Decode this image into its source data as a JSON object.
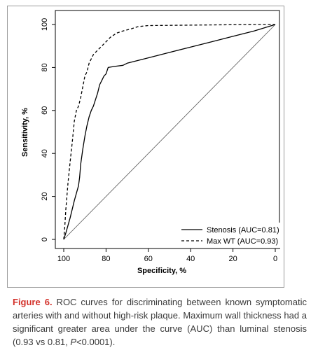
{
  "chart_data": {
    "type": "line",
    "xlabel": "Specificity, %",
    "ylabel": "Sensitivity, %",
    "xlim": [
      100,
      0
    ],
    "ylim": [
      0,
      100
    ],
    "xticks": [
      "100",
      "80",
      "60",
      "40",
      "20",
      "0"
    ],
    "yticks": [
      "0",
      "20",
      "40",
      "60",
      "80",
      "100"
    ],
    "grid": false,
    "legend_position": "bottom-right",
    "reference_line": true,
    "series": [
      {
        "name": "Stenosis (AUC=0.81)",
        "style": "solid",
        "x": [
          100,
          99,
          97,
          95,
          93,
          92.5,
          92,
          91,
          90,
          89,
          88,
          87,
          86,
          85,
          84,
          83,
          82,
          81,
          80,
          79,
          76,
          72,
          70,
          60,
          50,
          40,
          30,
          20,
          10,
          5,
          0
        ],
        "y": [
          0,
          3,
          10,
          18,
          25,
          29,
          35,
          42,
          48,
          53,
          57,
          60,
          62,
          65,
          68,
          72,
          74,
          76,
          77,
          80,
          80.5,
          81,
          82,
          84.5,
          87,
          89.5,
          92,
          94.5,
          97,
          98.5,
          100
        ]
      },
      {
        "name": "Max WT (AUC=0.93)",
        "style": "dashed",
        "x": [
          100,
          99.5,
          99,
          98.5,
          98,
          97,
          96,
          95,
          94,
          93,
          92,
          91,
          90,
          89,
          88,
          86,
          84,
          82,
          80,
          78,
          75,
          72,
          68,
          65,
          60,
          50,
          40,
          30,
          20,
          10,
          0
        ],
        "y": [
          0,
          6,
          14,
          20,
          26,
          36,
          45,
          55,
          60,
          62,
          66,
          71,
          76,
          78,
          82,
          86,
          88,
          90,
          92,
          94,
          96,
          97,
          98,
          99,
          99.5,
          99.6,
          99.7,
          99.8,
          99.9,
          100,
          100
        ]
      }
    ]
  },
  "caption": {
    "label": "Figure 6.",
    "text_before": " ROC curves for discriminating between known symptomatic arteries with and without high-risk plaque. Maximum wall thickness had a significant greater area under the curve (AUC) than luminal stenosis (0.93 vs 0.81, ",
    "p_symbol": "P",
    "text_after": "<0.0001)."
  },
  "colors": {
    "line": "#000000",
    "caption_label": "#d3322b",
    "frame_border": "#9a9a9a"
  }
}
